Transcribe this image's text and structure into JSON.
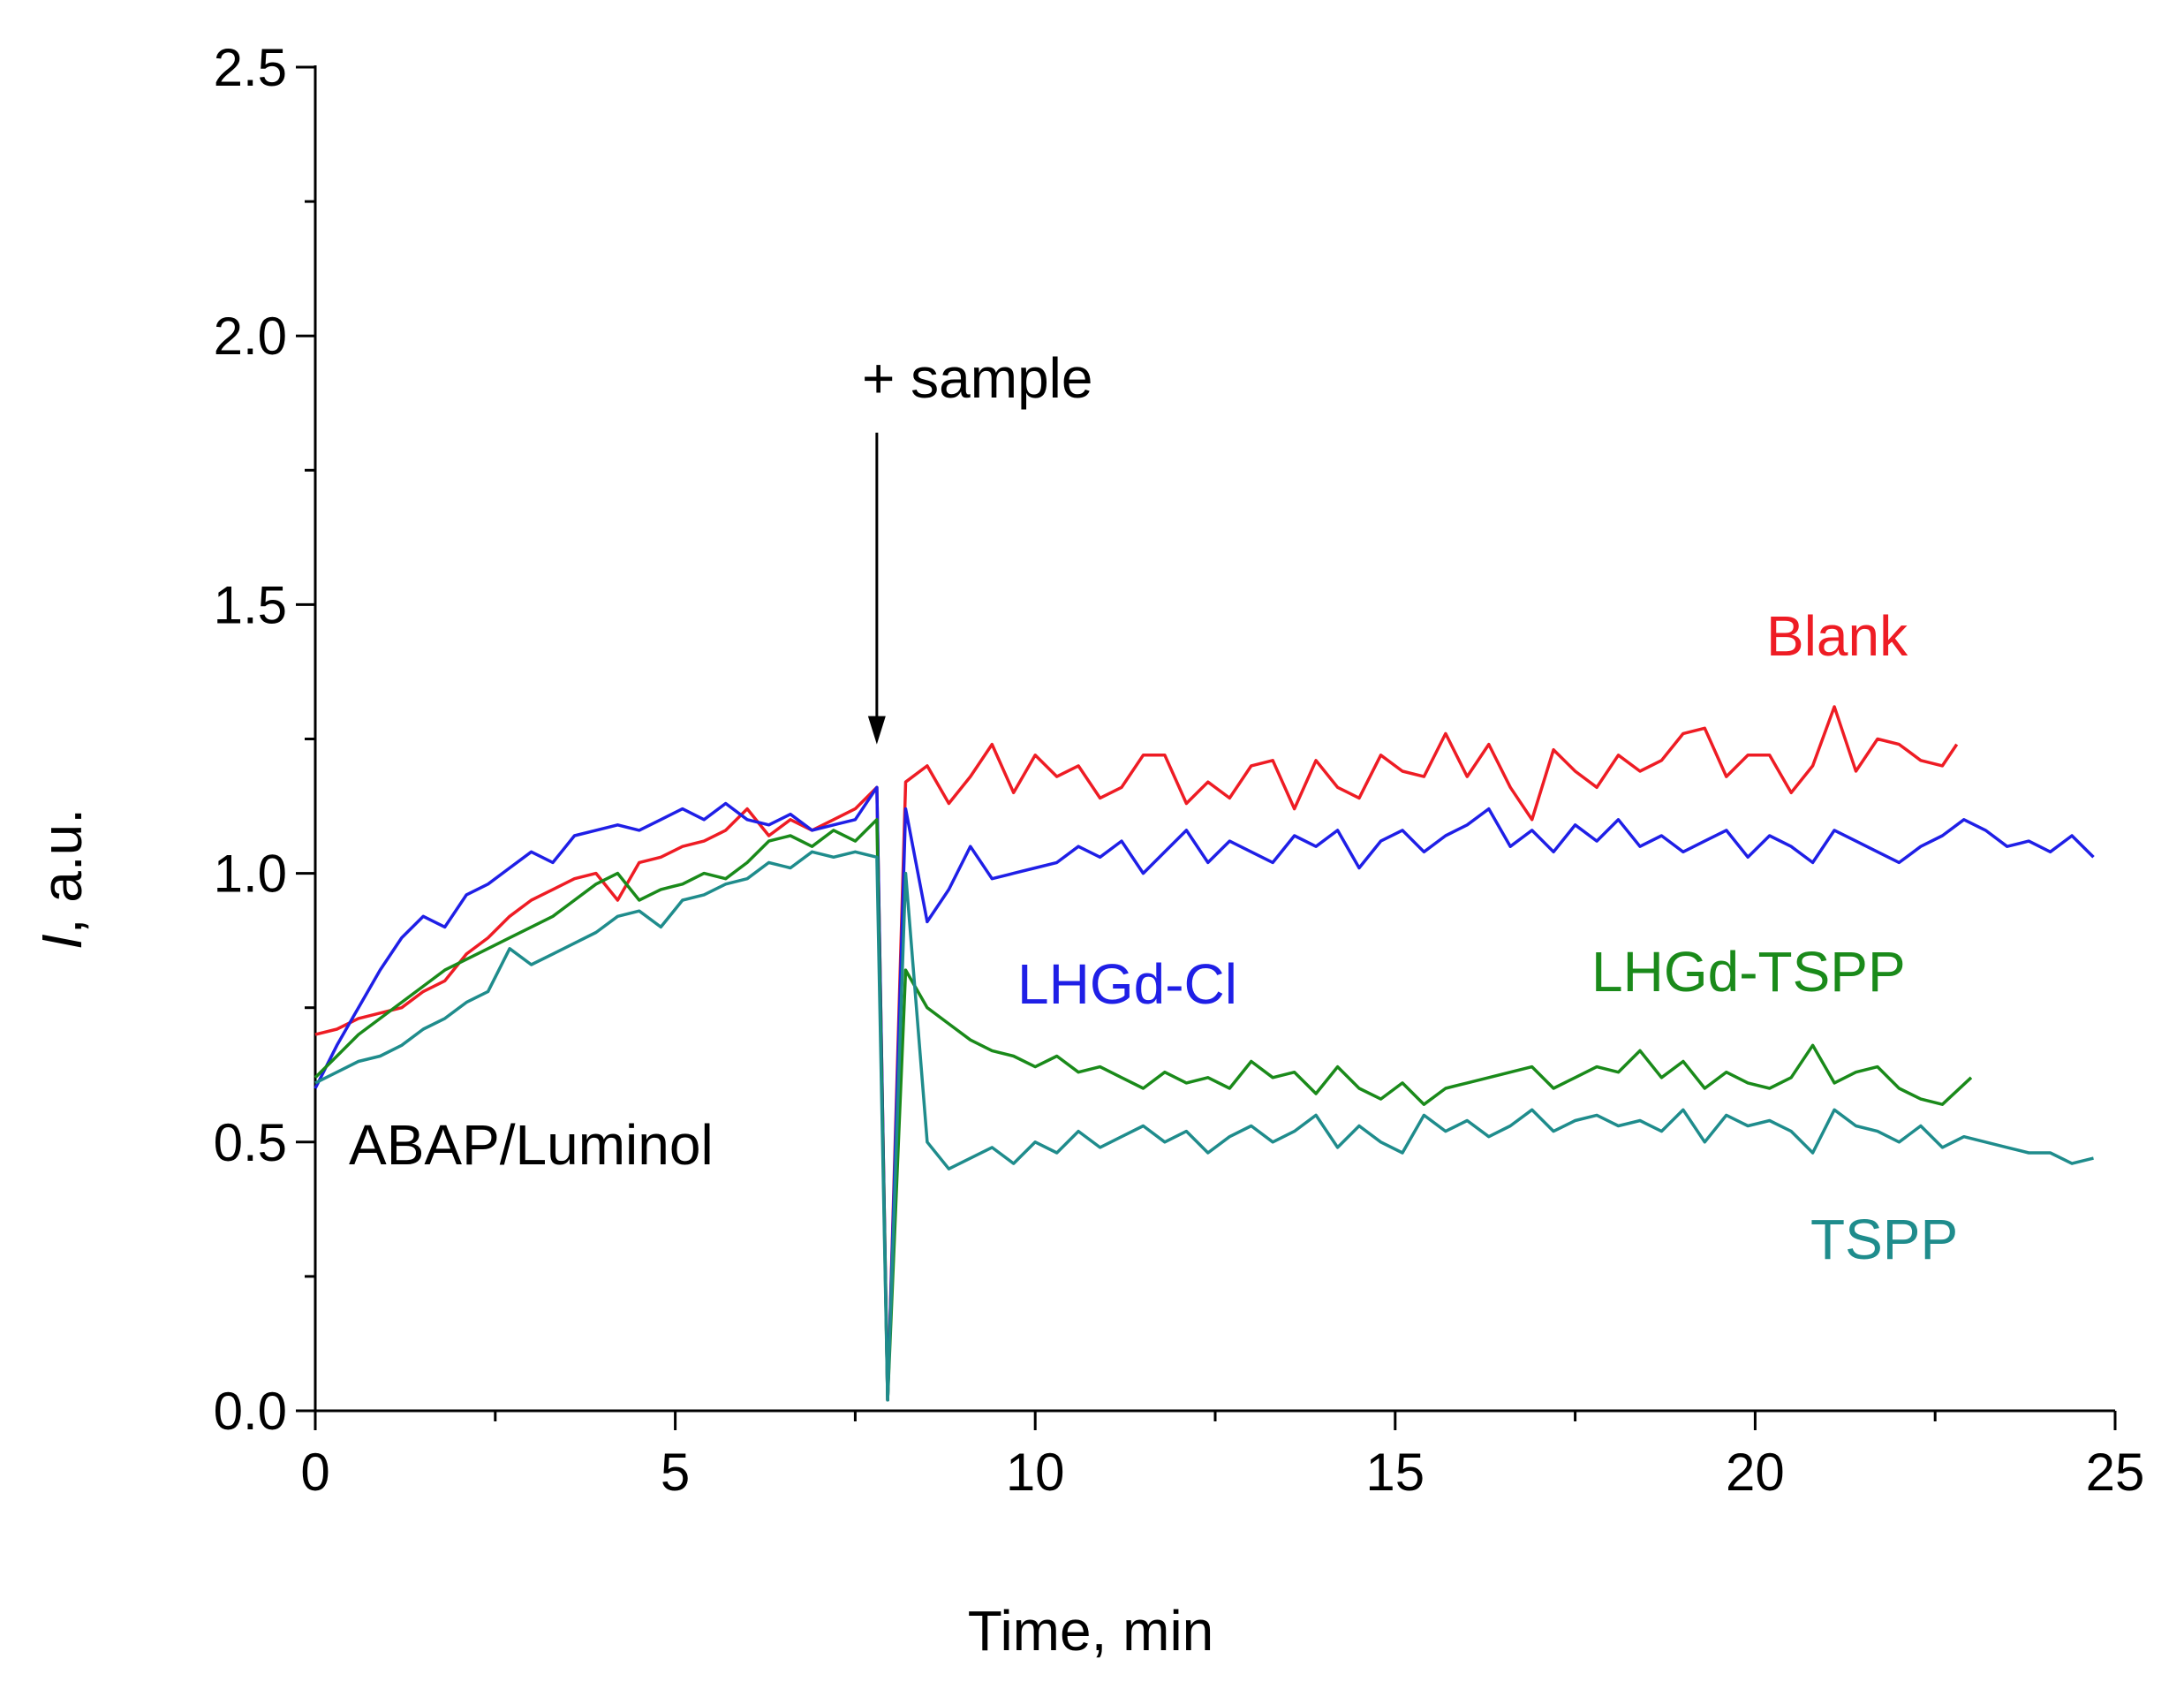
{
  "chart_data": {
    "type": "line",
    "title": "",
    "xlabel": "Time, min",
    "ylabel_italic": "I",
    "ylabel_rest": ", a.u.",
    "xlim": [
      0,
      25
    ],
    "ylim": [
      0,
      2.5
    ],
    "x_ticks": [
      0,
      5,
      10,
      15,
      20,
      25
    ],
    "x_tick_labels": [
      "0",
      "5",
      "10",
      "15",
      "20",
      "25"
    ],
    "y_ticks": [
      0,
      0.5,
      1.0,
      1.5,
      2.0,
      2.5
    ],
    "y_tick_labels": [
      "0.0",
      "0.5",
      "1.0",
      "1.5",
      "2.0",
      "2.5"
    ],
    "grid": false,
    "annotations": {
      "sample": "+ sample",
      "sample_x": 7.8,
      "sample_arrow_from": 1.82,
      "sample_arrow_to": 1.24,
      "initiator": "ABAP/Luminol"
    },
    "series": [
      {
        "name": "Blank",
        "color": "#ee1c24",
        "x": [
          0,
          0.3,
          0.6,
          0.9,
          1.2,
          1.5,
          1.8,
          2.1,
          2.4,
          2.7,
          3.0,
          3.3,
          3.6,
          3.9,
          4.2,
          4.5,
          4.8,
          5.1,
          5.4,
          5.7,
          6.0,
          6.3,
          6.6,
          6.9,
          7.2,
          7.5,
          7.8,
          7.95,
          8.2,
          8.5,
          8.8,
          9.1,
          9.4,
          9.7,
          10.0,
          10.3,
          10.6,
          10.9,
          11.2,
          11.5,
          11.8,
          12.1,
          12.4,
          12.7,
          13.0,
          13.3,
          13.6,
          13.9,
          14.2,
          14.5,
          14.8,
          15.1,
          15.4,
          15.7,
          16.0,
          16.3,
          16.6,
          16.9,
          17.2,
          17.5,
          17.8,
          18.1,
          18.4,
          18.7,
          19.0,
          19.3,
          19.6,
          19.9,
          20.2,
          20.5,
          20.8,
          21.1,
          21.4,
          21.7,
          22.0,
          22.3,
          22.6,
          22.8
        ],
        "y": [
          0.7,
          0.71,
          0.73,
          0.74,
          0.75,
          0.78,
          0.8,
          0.85,
          0.88,
          0.92,
          0.95,
          0.97,
          0.99,
          1.0,
          0.95,
          1.02,
          1.03,
          1.05,
          1.06,
          1.08,
          1.12,
          1.07,
          1.1,
          1.08,
          1.1,
          1.12,
          1.16,
          0.02,
          1.17,
          1.2,
          1.13,
          1.18,
          1.24,
          1.15,
          1.22,
          1.18,
          1.2,
          1.14,
          1.16,
          1.22,
          1.22,
          1.13,
          1.17,
          1.14,
          1.2,
          1.21,
          1.12,
          1.21,
          1.16,
          1.14,
          1.22,
          1.19,
          1.18,
          1.26,
          1.18,
          1.24,
          1.16,
          1.1,
          1.23,
          1.19,
          1.16,
          1.22,
          1.19,
          1.21,
          1.26,
          1.27,
          1.18,
          1.22,
          1.22,
          1.15,
          1.2,
          1.31,
          1.19,
          1.25,
          1.24,
          1.21,
          1.2,
          1.24
        ]
      },
      {
        "name": "LHGd-Cl",
        "color": "#1f1fe6",
        "x": [
          0,
          0.3,
          0.6,
          0.9,
          1.2,
          1.5,
          1.8,
          2.1,
          2.4,
          2.7,
          3.0,
          3.3,
          3.6,
          3.9,
          4.2,
          4.5,
          4.8,
          5.1,
          5.4,
          5.7,
          6.0,
          6.3,
          6.6,
          6.9,
          7.2,
          7.5,
          7.8,
          7.95,
          8.2,
          8.5,
          8.8,
          9.1,
          9.4,
          9.7,
          10.0,
          10.3,
          10.6,
          10.9,
          11.2,
          11.5,
          11.8,
          12.1,
          12.4,
          12.7,
          13.0,
          13.3,
          13.6,
          13.9,
          14.2,
          14.5,
          14.8,
          15.1,
          15.4,
          15.7,
          16.0,
          16.3,
          16.6,
          16.9,
          17.2,
          17.5,
          17.8,
          18.1,
          18.4,
          18.7,
          19.0,
          19.3,
          19.6,
          19.9,
          20.2,
          20.5,
          20.8,
          21.1,
          21.4,
          21.7,
          22.0,
          22.3,
          22.6,
          22.9,
          23.2,
          23.5,
          23.8,
          24.1,
          24.4,
          24.7
        ],
        "y": [
          0.6,
          0.68,
          0.75,
          0.82,
          0.88,
          0.92,
          0.9,
          0.96,
          0.98,
          1.01,
          1.04,
          1.02,
          1.07,
          1.08,
          1.09,
          1.08,
          1.1,
          1.12,
          1.1,
          1.13,
          1.1,
          1.09,
          1.11,
          1.08,
          1.09,
          1.1,
          1.16,
          0.02,
          1.12,
          0.91,
          0.97,
          1.05,
          0.99,
          1.0,
          1.01,
          1.02,
          1.05,
          1.03,
          1.06,
          1.0,
          1.04,
          1.08,
          1.02,
          1.06,
          1.04,
          1.02,
          1.07,
          1.05,
          1.08,
          1.01,
          1.06,
          1.08,
          1.04,
          1.07,
          1.09,
          1.12,
          1.05,
          1.08,
          1.04,
          1.09,
          1.06,
          1.1,
          1.05,
          1.07,
          1.04,
          1.06,
          1.08,
          1.03,
          1.07,
          1.05,
          1.02,
          1.08,
          1.06,
          1.04,
          1.02,
          1.05,
          1.07,
          1.1,
          1.08,
          1.05,
          1.06,
          1.04,
          1.07,
          1.03
        ]
      },
      {
        "name": "LHGd-TSPP",
        "color": "#1a8a1a",
        "x": [
          0,
          0.3,
          0.6,
          0.9,
          1.2,
          1.5,
          1.8,
          2.1,
          2.4,
          2.7,
          3.0,
          3.3,
          3.6,
          3.9,
          4.2,
          4.5,
          4.8,
          5.1,
          5.4,
          5.7,
          6.0,
          6.3,
          6.6,
          6.9,
          7.2,
          7.5,
          7.8,
          7.95,
          8.2,
          8.5,
          8.8,
          9.1,
          9.4,
          9.7,
          10.0,
          10.3,
          10.6,
          10.9,
          11.2,
          11.5,
          11.8,
          12.1,
          12.4,
          12.7,
          13.0,
          13.3,
          13.6,
          13.9,
          14.2,
          14.5,
          14.8,
          15.1,
          15.4,
          15.7,
          16.0,
          16.3,
          16.6,
          16.9,
          17.2,
          17.5,
          17.8,
          18.1,
          18.4,
          18.7,
          19.0,
          19.3,
          19.6,
          19.9,
          20.2,
          20.5,
          20.8,
          21.1,
          21.4,
          21.7,
          22.0,
          22.3,
          22.6,
          23.0
        ],
        "y": [
          0.62,
          0.66,
          0.7,
          0.73,
          0.76,
          0.79,
          0.82,
          0.84,
          0.86,
          0.88,
          0.9,
          0.92,
          0.95,
          0.98,
          1.0,
          0.95,
          0.97,
          0.98,
          1.0,
          0.99,
          1.02,
          1.06,
          1.07,
          1.05,
          1.08,
          1.06,
          1.1,
          0.02,
          0.82,
          0.75,
          0.72,
          0.69,
          0.67,
          0.66,
          0.64,
          0.66,
          0.63,
          0.64,
          0.62,
          0.6,
          0.63,
          0.61,
          0.62,
          0.6,
          0.65,
          0.62,
          0.63,
          0.59,
          0.64,
          0.6,
          0.58,
          0.61,
          0.57,
          0.6,
          0.61,
          0.62,
          0.63,
          0.64,
          0.6,
          0.62,
          0.64,
          0.63,
          0.67,
          0.62,
          0.65,
          0.6,
          0.63,
          0.61,
          0.6,
          0.62,
          0.68,
          0.61,
          0.63,
          0.64,
          0.6,
          0.58,
          0.57,
          0.62
        ]
      },
      {
        "name": "TSPP",
        "color": "#1f8c8c",
        "x": [
          0,
          0.3,
          0.6,
          0.9,
          1.2,
          1.5,
          1.8,
          2.1,
          2.4,
          2.7,
          3.0,
          3.3,
          3.6,
          3.9,
          4.2,
          4.5,
          4.8,
          5.1,
          5.4,
          5.7,
          6.0,
          6.3,
          6.6,
          6.9,
          7.2,
          7.5,
          7.8,
          7.95,
          8.2,
          8.5,
          8.8,
          9.1,
          9.4,
          9.7,
          10.0,
          10.3,
          10.6,
          10.9,
          11.2,
          11.5,
          11.8,
          12.1,
          12.4,
          12.7,
          13.0,
          13.3,
          13.6,
          13.9,
          14.2,
          14.5,
          14.8,
          15.1,
          15.4,
          15.7,
          16.0,
          16.3,
          16.6,
          16.9,
          17.2,
          17.5,
          17.8,
          18.1,
          18.4,
          18.7,
          19.0,
          19.3,
          19.6,
          19.9,
          20.2,
          20.5,
          20.8,
          21.1,
          21.4,
          21.7,
          22.0,
          22.3,
          22.6,
          22.9,
          23.2,
          23.5,
          23.8,
          24.1,
          24.4,
          24.7
        ],
        "y": [
          0.61,
          0.63,
          0.65,
          0.66,
          0.68,
          0.71,
          0.73,
          0.76,
          0.78,
          0.86,
          0.83,
          0.85,
          0.87,
          0.89,
          0.92,
          0.93,
          0.9,
          0.95,
          0.96,
          0.98,
          0.99,
          1.02,
          1.01,
          1.04,
          1.03,
          1.04,
          1.03,
          0.02,
          1.0,
          0.5,
          0.45,
          0.47,
          0.49,
          0.46,
          0.5,
          0.48,
          0.52,
          0.49,
          0.51,
          0.53,
          0.5,
          0.52,
          0.48,
          0.51,
          0.53,
          0.5,
          0.52,
          0.55,
          0.49,
          0.53,
          0.5,
          0.48,
          0.55,
          0.52,
          0.54,
          0.51,
          0.53,
          0.56,
          0.52,
          0.54,
          0.55,
          0.53,
          0.54,
          0.52,
          0.56,
          0.5,
          0.55,
          0.53,
          0.54,
          0.52,
          0.48,
          0.56,
          0.53,
          0.52,
          0.5,
          0.53,
          0.49,
          0.51,
          0.5,
          0.49,
          0.48,
          0.48,
          0.46,
          0.47
        ]
      }
    ],
    "labels": {
      "blank": "Blank",
      "lhgd_cl": "LHGd-Cl",
      "lhgd_tspp": "LHGd-TSPP",
      "tspp": "TSPP"
    }
  }
}
